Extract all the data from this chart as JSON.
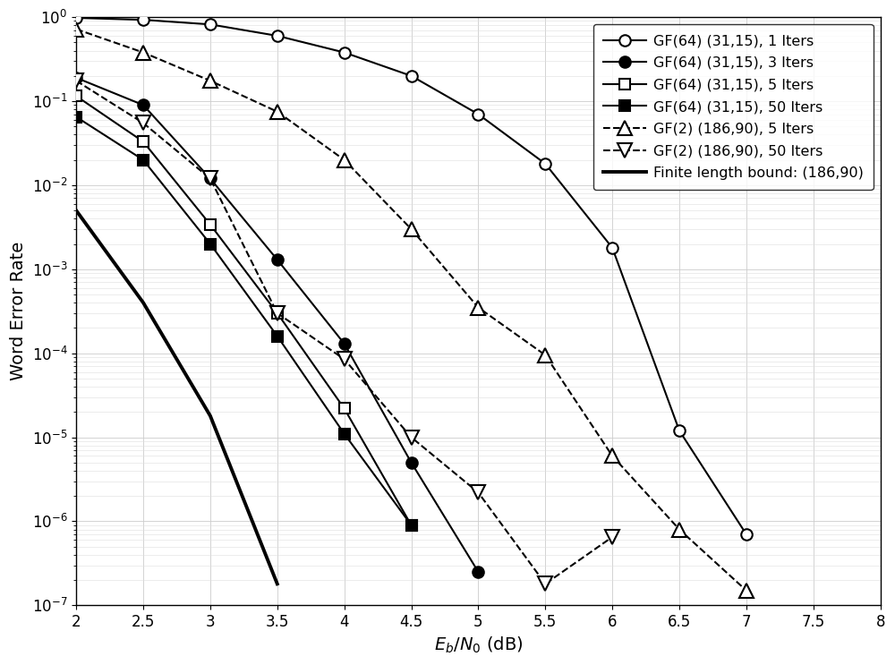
{
  "title": "",
  "xlabel": "$E_b/N_0$ (dB)",
  "ylabel": "Word Error Rate",
  "xlim": [
    2,
    8
  ],
  "ylim_log": [
    -7,
    0
  ],
  "xticks": [
    2,
    2.5,
    3,
    3.5,
    4,
    4.5,
    5,
    5.5,
    6,
    6.5,
    7,
    7.5,
    8
  ],
  "series": [
    {
      "label": "GF(64) (31,15), 1 Iters",
      "x": [
        2,
        2.5,
        3,
        3.5,
        4,
        4.5,
        5,
        5.5,
        6,
        6.5,
        7
      ],
      "y": [
        0.98,
        0.93,
        0.82,
        0.6,
        0.38,
        0.2,
        0.07,
        0.018,
        0.0018,
        1.2e-05,
        7e-07
      ],
      "color": "black",
      "linestyle": "-",
      "marker": "o",
      "markerfacecolor": "white",
      "markersize": 9,
      "linewidth": 1.5,
      "dashes": null
    },
    {
      "label": "GF(64) (31,15), 3 Iters",
      "x": [
        2,
        2.5,
        3,
        3.5,
        4,
        4.5,
        5
      ],
      "y": [
        0.19,
        0.09,
        0.012,
        0.0013,
        0.00013,
        5e-06,
        2.5e-07
      ],
      "color": "black",
      "linestyle": "-",
      "marker": "o",
      "markerfacecolor": "black",
      "markersize": 9,
      "linewidth": 1.5,
      "dashes": null
    },
    {
      "label": "GF(64) (31,15), 5 Iters",
      "x": [
        2,
        2.5,
        3,
        3.5,
        4,
        4.5
      ],
      "y": [
        0.115,
        0.033,
        0.0034,
        0.0003,
        2.2e-05,
        9e-07
      ],
      "color": "black",
      "linestyle": "-",
      "marker": "s",
      "markerfacecolor": "white",
      "markersize": 8,
      "linewidth": 1.5,
      "dashes": null
    },
    {
      "label": "GF(64) (31,15), 50 Iters",
      "x": [
        2,
        2.5,
        3,
        3.5,
        4,
        4.5
      ],
      "y": [
        0.065,
        0.02,
        0.002,
        0.00016,
        1.1e-05,
        9e-07
      ],
      "color": "black",
      "linestyle": "-",
      "marker": "s",
      "markerfacecolor": "black",
      "markersize": 8,
      "linewidth": 1.5,
      "dashes": null
    },
    {
      "label": "GF(2) (186,90), 5 Iters",
      "x": [
        2,
        2.5,
        3,
        3.5,
        4,
        4.5,
        5,
        5.5,
        6,
        6.5,
        7
      ],
      "y": [
        0.72,
        0.38,
        0.175,
        0.075,
        0.02,
        0.003,
        0.00035,
        9.5e-05,
        6e-06,
        8e-07,
        1.5e-07
      ],
      "color": "black",
      "linestyle": "--",
      "marker": "^",
      "markerfacecolor": "white",
      "markersize": 11,
      "linewidth": 1.5,
      "dashes": null
    },
    {
      "label": "GF(2) (186,90), 50 Iters",
      "x": [
        2,
        2.5,
        3,
        3.5,
        4,
        4.5,
        5,
        5.5,
        6
      ],
      "y": [
        0.175,
        0.055,
        0.012,
        0.0003,
        8.5e-05,
        1e-05,
        2.2e-06,
        1.8e-07,
        6.5e-07
      ],
      "color": "black",
      "linestyle": "--",
      "marker": "v",
      "markerfacecolor": "white",
      "markersize": 11,
      "linewidth": 1.5,
      "dashes": null
    },
    {
      "label": "Finite length bound: (186,90)",
      "x": [
        2,
        2.5,
        3,
        3.5
      ],
      "y": [
        0.005,
        0.0004,
        1.8e-05,
        1.8e-07
      ],
      "color": "black",
      "linestyle": "-",
      "marker": null,
      "markerfacecolor": null,
      "markersize": null,
      "linewidth": 2.8,
      "dashes": null
    }
  ]
}
